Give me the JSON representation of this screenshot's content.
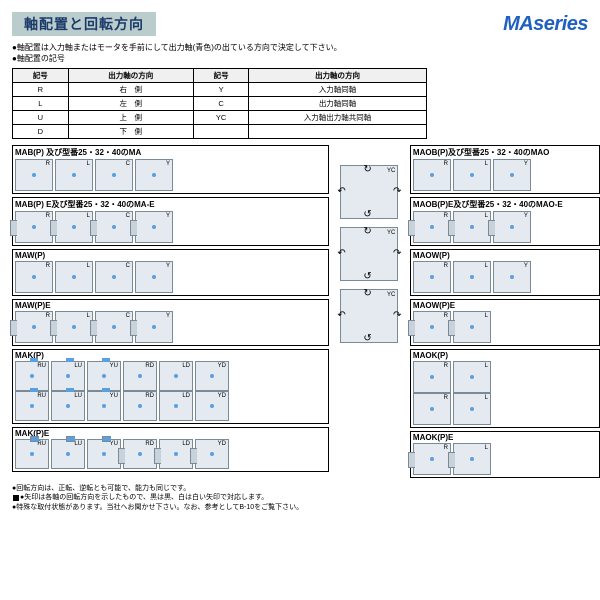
{
  "header": {
    "title": "軸配置と回転方向",
    "series": "MAseries"
  },
  "intro": {
    "line1": "●軸配置は入力軸またはモータを手前にして出力軸(青色)の出ている方向で決定して下さい。",
    "line2": "●軸配置の記号"
  },
  "codeTable": {
    "headers": [
      "記号",
      "出力軸の方向",
      "記号",
      "出力軸の方向"
    ],
    "rows": [
      [
        "R",
        "右　側",
        "Y",
        "入力軸同軸"
      ],
      [
        "L",
        "左　側",
        "C",
        "出力軸同軸"
      ],
      [
        "U",
        "上　側",
        "YC",
        "入力軸出力軸共同軸"
      ],
      [
        "D",
        "下　側",
        "",
        ""
      ]
    ]
  },
  "groups_left": [
    {
      "title": "MAB(P) 及び型番25・32・40のMA",
      "rows": [
        [
          "R",
          "L",
          "C",
          "Y"
        ]
      ],
      "motor": false
    },
    {
      "title": "MAB(P) E及び型番25・32・40のMA-E",
      "rows": [
        [
          "R",
          "L",
          "C",
          "Y"
        ]
      ],
      "motor": true
    },
    {
      "title": "MAW(P)",
      "rows": [
        [
          "R",
          "L",
          "C",
          "Y"
        ]
      ],
      "motor": false
    },
    {
      "title": "MAW(P)E",
      "rows": [
        [
          "R",
          "L",
          "C",
          "Y"
        ]
      ],
      "motor": true
    },
    {
      "title": "MAK(P)",
      "rows": [
        [
          "RU",
          "LU",
          "YU",
          "RD",
          "LD",
          "YD"
        ],
        [
          "RU",
          "LU",
          "YU",
          "RD",
          "LD",
          "YD"
        ]
      ],
      "motor": false,
      "small": true
    },
    {
      "title": "MAK(P)E",
      "rows": [
        [
          "RU",
          "LU",
          "YU",
          "RD",
          "LD",
          "YD"
        ]
      ],
      "motor": true,
      "small": true
    }
  ],
  "groups_right": [
    {
      "title": "MAOB(P)及び型番25・32・40のMAO",
      "rows": [
        [
          "R",
          "L",
          "Y"
        ]
      ],
      "motor": false
    },
    {
      "title": "MAOB(P)E及び型番25・32・40のMAO-E",
      "rows": [
        [
          "R",
          "L",
          "Y"
        ]
      ],
      "motor": true
    },
    {
      "title": "MAOW(P)",
      "rows": [
        [
          "R",
          "L",
          "Y"
        ]
      ],
      "motor": false
    },
    {
      "title": "MAOW(P)E",
      "rows": [
        [
          "R",
          "L"
        ]
      ],
      "motor": true
    },
    {
      "title": "MAOK(P)",
      "rows": [
        [
          "R",
          "L"
        ],
        [
          "R",
          "L"
        ]
      ],
      "motor": false
    },
    {
      "title": "MAOK(P)E",
      "rows": [
        [
          "R",
          "L"
        ]
      ],
      "motor": true
    }
  ],
  "center_labels": [
    "YC",
    "YC",
    "YC"
  ],
  "footnotes": {
    "f1": "●回転方向は、正転、逆転とも可能で、能力も同じです。",
    "f2": "●矢印は各軸の回転方向を示したもので、黒は黒、白は白い矢印で対応します。",
    "f3": "●特殊な取付状態があります。当社へお聞かせ下さい。なお、参考としてB-10をご覧下さい。"
  },
  "colors": {
    "shaft": "#5a9fe0",
    "box_fill": "#e4eaef",
    "box_border": "#7a8a99",
    "title_bg": "#bcc",
    "brand": "#2060c0"
  }
}
